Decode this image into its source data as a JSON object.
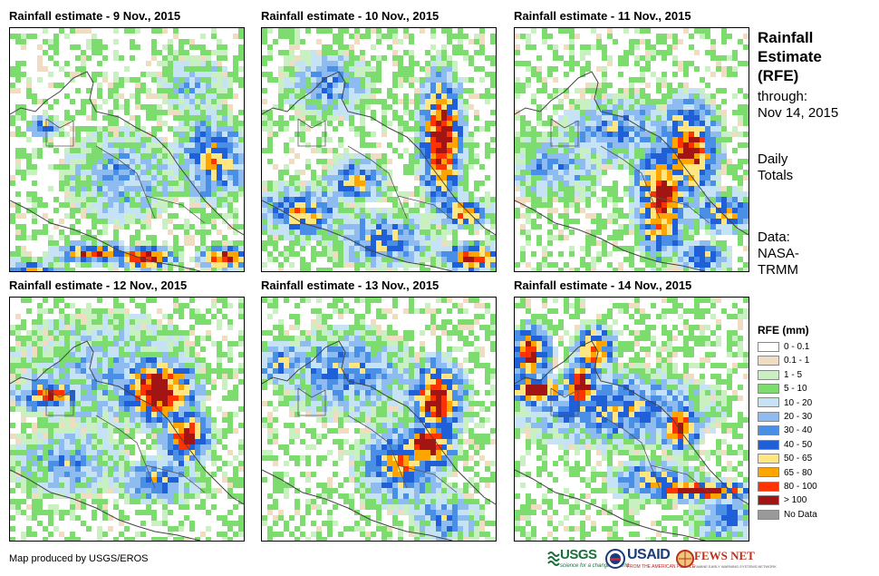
{
  "panels": [
    {
      "title": "Rainfall estimate - 9 Nov., 2015"
    },
    {
      "title": "Rainfall estimate - 10 Nov., 2015"
    },
    {
      "title": "Rainfall estimate - 11 Nov., 2015"
    },
    {
      "title": "Rainfall estimate - 12 Nov., 2015"
    },
    {
      "title": "Rainfall estimate - 13 Nov., 2015"
    },
    {
      "title": "Rainfall estimate - 14 Nov., 2015"
    }
  ],
  "sidebar": {
    "title_lines": [
      "Rainfall",
      "Estimate",
      "(RFE)"
    ],
    "through_lines": [
      "through:",
      "Nov 14, 2015"
    ],
    "totals_lines": [
      "Daily",
      "Totals"
    ],
    "source_lines": [
      "Data:",
      "NASA-",
      "TRMM"
    ]
  },
  "legend": {
    "title": "RFE (mm)",
    "classes": [
      {
        "label": "0 - 0.1",
        "color": "#ffffff"
      },
      {
        "label": "0.1 - 1",
        "color": "#f0dcc0"
      },
      {
        "label": "1 - 5",
        "color": "#c8f0c0"
      },
      {
        "label": "5 - 10",
        "color": "#7ddc6e"
      },
      {
        "label": "10 - 20",
        "color": "#c5e3f5"
      },
      {
        "label": "20 - 30",
        "color": "#8fbcf0"
      },
      {
        "label": "30 - 40",
        "color": "#4a8fe6"
      },
      {
        "label": "40 - 50",
        "color": "#1f5fd8"
      },
      {
        "label": "50 - 65",
        "color": "#ffe680"
      },
      {
        "label": "65 - 80",
        "color": "#ffa500"
      },
      {
        "label": "80 - 100",
        "color": "#ff3300"
      },
      {
        "label": "> 100",
        "color": "#a31515"
      },
      {
        "label": "No Data",
        "color": "#9a9a9a"
      }
    ]
  },
  "footer": {
    "credit": "Map produced by USGS/EROS",
    "logos": {
      "usgs": {
        "name": "USGS",
        "tagline": "science for a changing world"
      },
      "usaid": {
        "name": "USAID",
        "tagline": "FROM THE AMERICAN PEOPLE"
      },
      "fews": {
        "name": "FEWS NET",
        "tagline": "FAMINE EARLY WARNING SYSTEMS NETWORK"
      }
    }
  }
}
